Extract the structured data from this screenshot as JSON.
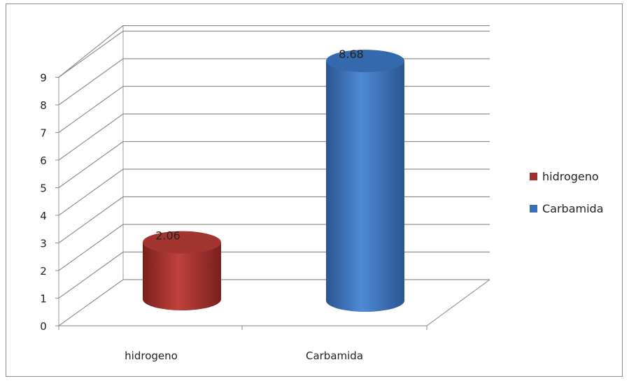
{
  "chart_data": {
    "type": "bar",
    "style": "3d-cylinder",
    "categories": [
      "hidrogeno",
      "Carbamida"
    ],
    "series": [
      {
        "name": "hidrogeno",
        "values": [
          2.06,
          null
        ],
        "color": "#a0302d"
      },
      {
        "name": "Carbamida",
        "values": [
          null,
          8.68
        ],
        "color": "#3a6fb8"
      }
    ],
    "data_labels": [
      "2.06",
      "8.68"
    ],
    "y_ticks": [
      "0",
      "1",
      "2",
      "3",
      "4",
      "5",
      "6",
      "7",
      "8",
      "9"
    ],
    "ylim": [
      0,
      9
    ],
    "grid": true,
    "legend": {
      "position": "right",
      "entries": [
        {
          "label": "hidrogeno",
          "color": "#a0302d"
        },
        {
          "label": "Carbamida",
          "color": "#3a6fb8"
        }
      ]
    }
  }
}
